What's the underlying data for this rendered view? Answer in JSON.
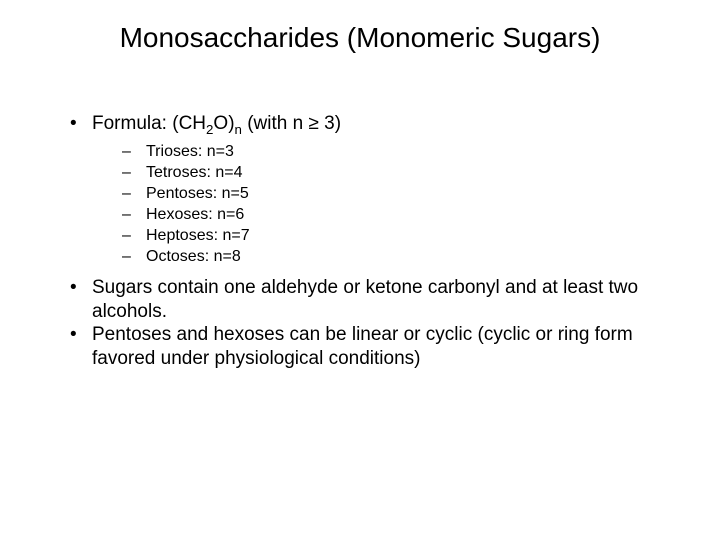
{
  "title": "Monosaccharides (Monomeric Sugars)",
  "bullets": {
    "formula_pre": "Formula: (CH",
    "formula_sub1": "2",
    "formula_mid": "O)",
    "formula_sub2": "n",
    "formula_post": " (with n ≥ 3)",
    "sub": [
      "Trioses: n=3",
      "Tetroses: n=4",
      "Pentoses: n=5",
      "Hexoses: n=6",
      "Heptoses: n=7",
      "Octoses: n=8"
    ],
    "point2": "Sugars contain one aldehyde or ketone carbonyl and at least two alcohols.",
    "point3": "Pentoses and hexoses can be linear or cyclic (cyclic or ring form favored under physiological conditions)"
  },
  "markers": {
    "l1": "•",
    "l2": "–"
  },
  "style": {
    "background": "#ffffff",
    "text_color": "#000000",
    "title_fontsize": 28,
    "body_fontsize": 19,
    "sub_fontsize": 16
  }
}
